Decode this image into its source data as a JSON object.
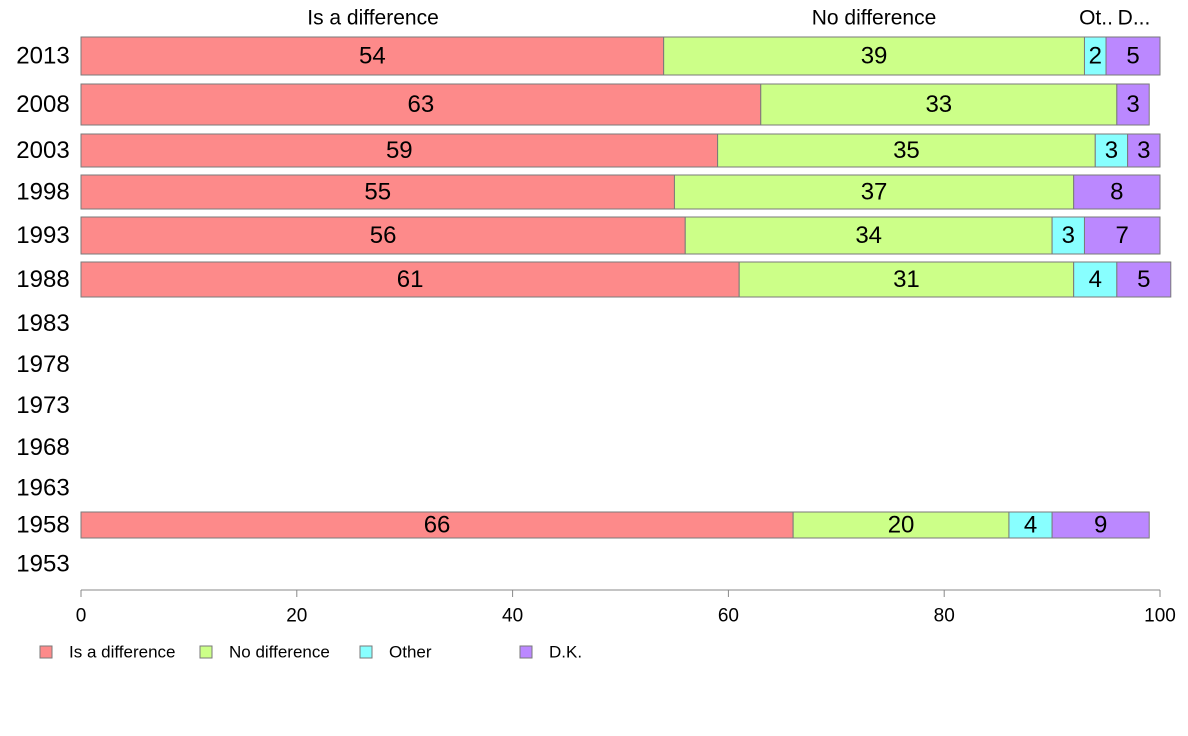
{
  "chart_data": {
    "type": "bar",
    "orientation": "horizontal",
    "stacked": true,
    "categories": [
      "2013",
      "2008",
      "2003",
      "1998",
      "1993",
      "1988",
      "1983",
      "1978",
      "1973",
      "1968",
      "1963",
      "1958",
      "1953"
    ],
    "series": [
      {
        "name": "Is a difference",
        "color": "#fd8a8a",
        "values": [
          54,
          63,
          59,
          55,
          56,
          61,
          null,
          null,
          null,
          null,
          null,
          66,
          null
        ]
      },
      {
        "name": "No difference",
        "color": "#ccff88",
        "values": [
          39,
          33,
          35,
          37,
          34,
          31,
          null,
          null,
          null,
          null,
          null,
          20,
          null
        ]
      },
      {
        "name": "Other",
        "color": "#88ffff",
        "values": [
          2,
          0,
          3,
          0,
          3,
          4,
          null,
          null,
          null,
          null,
          null,
          4,
          null
        ]
      },
      {
        "name": "D.K.",
        "color": "#bb88ff",
        "values": [
          5,
          3,
          3,
          8,
          7,
          5,
          null,
          null,
          null,
          null,
          null,
          9,
          null
        ]
      }
    ],
    "value_labels": [
      [
        "54",
        "39",
        "2",
        "5"
      ],
      [
        "63",
        "33",
        "",
        "3"
      ],
      [
        "59",
        "35",
        "3",
        "3"
      ],
      [
        "55",
        "37",
        "",
        "8"
      ],
      [
        "56",
        "34",
        "3",
        "7"
      ],
      [
        "61",
        "31",
        "4",
        "5"
      ],
      [
        "",
        "",
        "",
        ""
      ],
      [
        "",
        "",
        "",
        ""
      ],
      [
        "",
        "",
        "",
        ""
      ],
      [
        "",
        "",
        "",
        ""
      ],
      [
        "",
        "",
        "",
        ""
      ],
      [
        "66",
        "20",
        "4",
        "9"
      ],
      [
        "",
        "",
        "",
        ""
      ]
    ],
    "top_labels": [
      "Is a difference",
      "No difference",
      "Ot..",
      "D..."
    ],
    "xlim": [
      0,
      100
    ],
    "xticks": [
      0,
      20,
      40,
      60,
      80,
      100
    ],
    "grid": false,
    "legend": {
      "position": "bottom",
      "entries": [
        "Is a difference",
        "No difference",
        "Other",
        "D.K."
      ]
    }
  }
}
